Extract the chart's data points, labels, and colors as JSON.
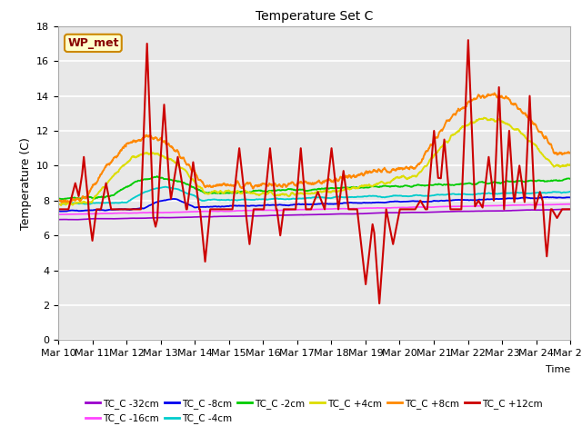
{
  "title": "Temperature Set C",
  "xlabel": "Time",
  "ylabel": "Temperature (C)",
  "ylim": [
    0,
    18
  ],
  "yticks": [
    0,
    2,
    4,
    6,
    8,
    10,
    12,
    14,
    16,
    18
  ],
  "date_labels": [
    "Mar 10",
    "Mar 11",
    "Mar 12",
    "Mar 13",
    "Mar 14",
    "Mar 15",
    "Mar 16",
    "Mar 17",
    "Mar 18",
    "Mar 19",
    "Mar 20",
    "Mar 21",
    "Mar 22",
    "Mar 23",
    "Mar 24",
    "Mar 25"
  ],
  "legend_entries": [
    {
      "label": "TC_C -32cm",
      "color": "#9900cc"
    },
    {
      "label": "TC_C -16cm",
      "color": "#ff44ff"
    },
    {
      "label": "TC_C -8cm",
      "color": "#0000ee"
    },
    {
      "label": "TC_C -4cm",
      "color": "#00cccc"
    },
    {
      "label": "TC_C -2cm",
      "color": "#00cc00"
    },
    {
      "label": "TC_C +4cm",
      "color": "#dddd00"
    },
    {
      "label": "TC_C +8cm",
      "color": "#ff8800"
    },
    {
      "label": "TC_C +12cm",
      "color": "#cc0000"
    }
  ],
  "wp_met_box": {
    "text": "WP_met",
    "facecolor": "#ffffcc",
    "edgecolor": "#cc8800",
    "textcolor": "#880000"
  },
  "plot_bg_color": "#e8e8e8",
  "grid_color": "#ffffff",
  "figsize": [
    6.4,
    4.8
  ],
  "dpi": 100
}
